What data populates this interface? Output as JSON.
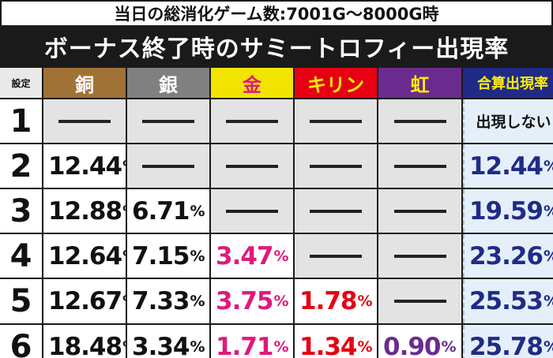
{
  "header": {
    "subtitle": "当日の総消化ゲーム数:7001G～8000G時",
    "title": "ボーナス終了時のサミートロフィー出現率"
  },
  "columns": {
    "setting": "設定",
    "copper": "銅",
    "silver": "銀",
    "gold": "金",
    "kirin": "キリン",
    "rainbow": "虹",
    "total": "合算出現率"
  },
  "colors": {
    "copper": "#a07235",
    "silver": "#808080",
    "gold": "#f1e400",
    "kirin": "#e60012",
    "rainbow": "#6a2b8f",
    "total": "#1f2b87"
  },
  "rows": [
    {
      "setting": "1",
      "copper": "",
      "silver": "",
      "gold": "",
      "kirin": "",
      "rainbow": "",
      "total": "出現しない"
    },
    {
      "setting": "2",
      "copper": "12.44",
      "silver": "",
      "gold": "",
      "kirin": "",
      "rainbow": "",
      "total": "12.44"
    },
    {
      "setting": "3",
      "copper": "12.88",
      "silver": "6.71",
      "gold": "",
      "kirin": "",
      "rainbow": "",
      "total": "19.59"
    },
    {
      "setting": "4",
      "copper": "12.64",
      "silver": "7.15",
      "gold": "3.47",
      "kirin": "",
      "rainbow": "",
      "total": "23.26"
    },
    {
      "setting": "5",
      "copper": "12.67",
      "silver": "7.33",
      "gold": "3.75",
      "kirin": "1.78",
      "rainbow": "",
      "total": "25.53"
    },
    {
      "setting": "6",
      "copper": "18.48",
      "silver": "3.34",
      "gold": "1.71",
      "kirin": "1.34",
      "rainbow": "0.90",
      "total": "25.78"
    }
  ],
  "unit": "%"
}
